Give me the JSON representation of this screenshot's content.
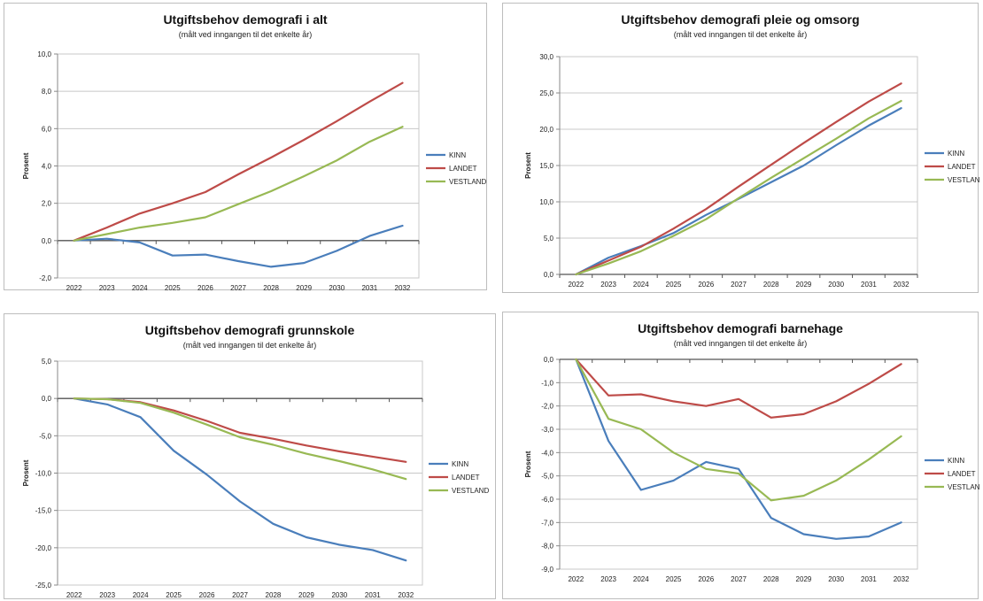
{
  "chart_data": [
    {
      "type": "line",
      "title": "Utgiftsbehov demografi i alt",
      "subtitle": "(målt ved inngangen til det enkelte år)",
      "ylabel": "Prosent",
      "xlabel": "",
      "categories": [
        "2022",
        "2023",
        "2024",
        "2025",
        "2026",
        "2027",
        "2028",
        "2029",
        "2030",
        "2031",
        "2032"
      ],
      "ylim": [
        -2,
        10
      ],
      "yticks": [
        "-2,0",
        "0,0",
        "2,0",
        "4,0",
        "6,0",
        "8,0",
        "10,0"
      ],
      "legend_position": "right",
      "series": [
        {
          "name": "KINN",
          "color": "#4a7ebb",
          "values": [
            0.0,
            0.1,
            -0.1,
            -0.8,
            -0.75,
            -1.1,
            -1.4,
            -1.2,
            -0.55,
            0.25,
            0.8
          ]
        },
        {
          "name": "LANDET",
          "color": "#be4b48",
          "values": [
            0.0,
            0.7,
            1.45,
            2.0,
            2.6,
            3.55,
            4.45,
            5.4,
            6.4,
            7.45,
            8.45
          ]
        },
        {
          "name": "VESTLAND",
          "color": "#98b954",
          "values": [
            0.0,
            0.35,
            0.7,
            0.95,
            1.25,
            1.95,
            2.65,
            3.45,
            4.3,
            5.3,
            6.1
          ]
        }
      ]
    },
    {
      "type": "line",
      "title": "Utgiftsbehov demografi pleie og omsorg",
      "subtitle": "(målt ved inngangen til det enkelte år)",
      "ylabel": "Prosent",
      "xlabel": "",
      "categories": [
        "2022",
        "2023",
        "2024",
        "2025",
        "2026",
        "2027",
        "2028",
        "2029",
        "2030",
        "2031",
        "2032"
      ],
      "ylim": [
        0,
        30
      ],
      "yticks": [
        "0,0",
        "5,0",
        "10,0",
        "15,0",
        "20,0",
        "25,0",
        "30,0"
      ],
      "legend_position": "right",
      "series": [
        {
          "name": "KINN",
          "color": "#4a7ebb",
          "values": [
            0.0,
            2.3,
            3.9,
            5.7,
            8.2,
            10.4,
            12.7,
            15.0,
            17.8,
            20.5,
            22.9
          ]
        },
        {
          "name": "LANDET",
          "color": "#be4b48",
          "values": [
            0.0,
            1.9,
            3.8,
            6.3,
            9.0,
            12.1,
            15.1,
            18.1,
            21.0,
            23.8,
            26.3
          ]
        },
        {
          "name": "VESTLAND",
          "color": "#98b954",
          "values": [
            0.0,
            1.5,
            3.2,
            5.3,
            7.6,
            10.5,
            13.3,
            16.0,
            18.7,
            21.5,
            23.9
          ]
        }
      ]
    },
    {
      "type": "line",
      "title": "Utgiftsbehov demografi grunnskole",
      "subtitle": "(målt ved inngangen til det enkelte år)",
      "ylabel": "Prosent",
      "xlabel": "",
      "categories": [
        "2022",
        "2023",
        "2024",
        "2025",
        "2026",
        "2027",
        "2028",
        "2029",
        "2030",
        "2031",
        "2032"
      ],
      "ylim": [
        -25,
        5
      ],
      "yticks": [
        "-25,0",
        "-20,0",
        "-15,0",
        "-10,0",
        "-5,0",
        "0,0",
        "5,0"
      ],
      "legend_position": "right",
      "series": [
        {
          "name": "KINN",
          "color": "#4a7ebb",
          "values": [
            0.0,
            -0.8,
            -2.5,
            -7.0,
            -10.2,
            -13.8,
            -16.8,
            -18.6,
            -19.6,
            -20.3,
            -21.7
          ]
        },
        {
          "name": "LANDET",
          "color": "#be4b48",
          "values": [
            0.0,
            -0.1,
            -0.5,
            -1.6,
            -3.0,
            -4.6,
            -5.4,
            -6.3,
            -7.1,
            -7.8,
            -8.5
          ]
        },
        {
          "name": "VESTLAND",
          "color": "#98b954",
          "values": [
            0.0,
            -0.1,
            -0.6,
            -1.9,
            -3.5,
            -5.2,
            -6.2,
            -7.4,
            -8.4,
            -9.5,
            -10.8
          ]
        }
      ]
    },
    {
      "type": "line",
      "title": "Utgiftsbehov demografi barnehage",
      "subtitle": "(målt ved inngangen til det enkelte år)",
      "ylabel": "Prosent",
      "xlabel": "",
      "categories": [
        "2022",
        "2023",
        "2024",
        "2025",
        "2026",
        "2027",
        "2028",
        "2029",
        "2030",
        "2031",
        "2032"
      ],
      "ylim": [
        -9,
        0
      ],
      "yticks": [
        "-9,0",
        "-8,0",
        "-7,0",
        "-6,0",
        "-5,0",
        "-4,0",
        "-3,0",
        "-2,0",
        "-1,0",
        "0,0"
      ],
      "legend_position": "right",
      "series": [
        {
          "name": "KINN",
          "color": "#4a7ebb",
          "values": [
            0.0,
            -3.5,
            -5.6,
            -5.2,
            -4.4,
            -4.7,
            -6.8,
            -7.5,
            -7.7,
            -7.6,
            -7.0
          ]
        },
        {
          "name": "LANDET",
          "color": "#be4b48",
          "values": [
            0.0,
            -1.55,
            -1.5,
            -1.8,
            -2.0,
            -1.7,
            -2.5,
            -2.35,
            -1.8,
            -1.05,
            -0.2
          ]
        },
        {
          "name": "VESTLAND",
          "color": "#98b954",
          "values": [
            0.0,
            -2.55,
            -3.0,
            -4.0,
            -4.7,
            -4.9,
            -6.05,
            -5.85,
            -5.2,
            -4.3,
            -3.3
          ]
        }
      ]
    }
  ]
}
